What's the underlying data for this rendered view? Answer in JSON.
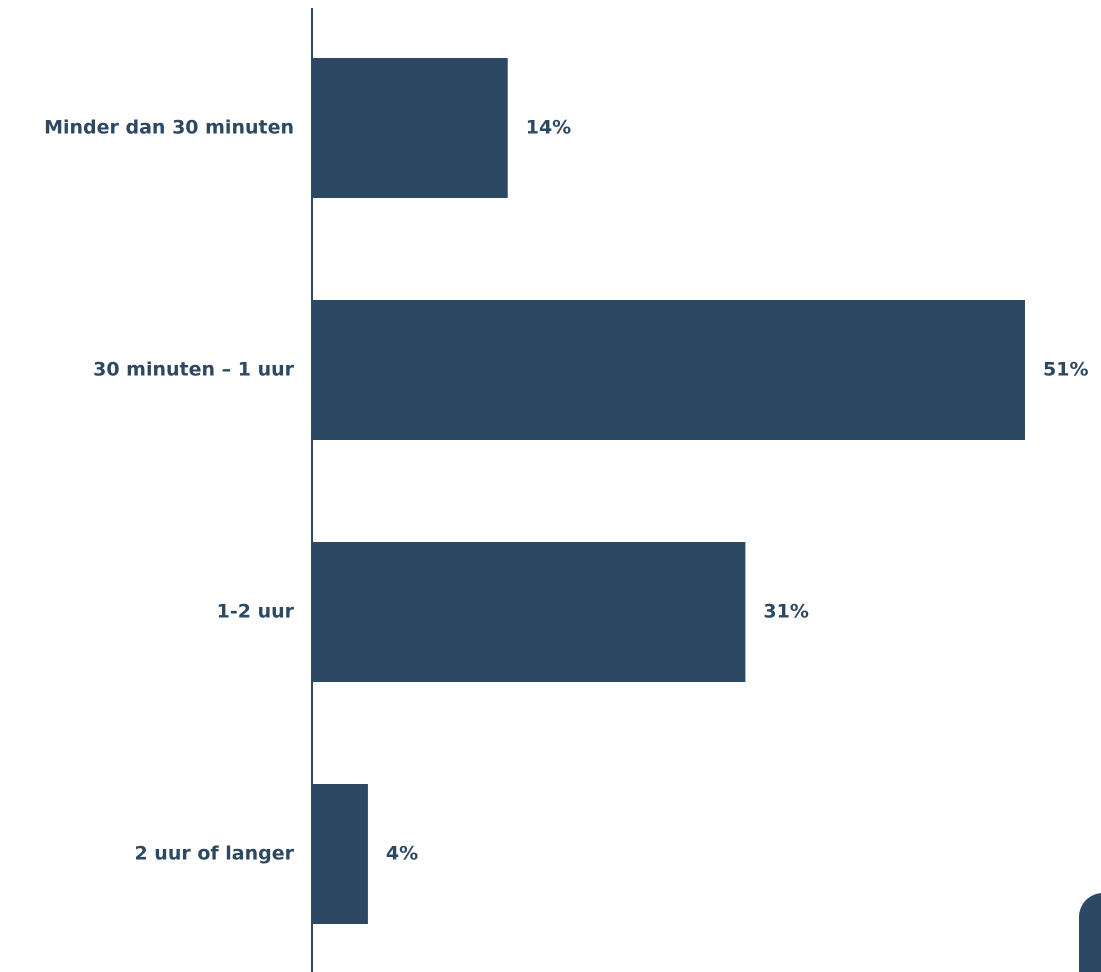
{
  "chart_data": {
    "type": "bar",
    "orientation": "horizontal",
    "categories": [
      "Minder dan 30 minuten",
      "30 minuten – 1 uur",
      "1-2 uur",
      "2 uur of langer"
    ],
    "values": [
      14,
      51,
      31,
      4
    ],
    "value_labels": [
      "14%",
      "51%",
      "31%",
      "4%"
    ],
    "unit": "%",
    "xlim": [
      0,
      51
    ],
    "grid": false,
    "title": "",
    "xlabel": "",
    "ylabel": ""
  },
  "colors": {
    "bar": "#2d4863",
    "text": "#2d4863",
    "axis": "#2d4863"
  }
}
